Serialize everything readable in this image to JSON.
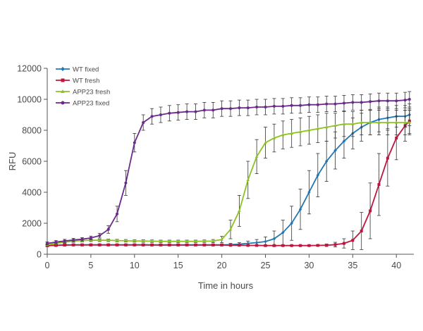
{
  "chart_data": {
    "type": "line",
    "xlabel": "Time in hours",
    "ylabel": "RFU",
    "xlim": [
      0,
      42
    ],
    "ylim": [
      0,
      12000
    ],
    "xticks": [
      0,
      5,
      10,
      15,
      20,
      25,
      30,
      35,
      40
    ],
    "yticks": [
      0,
      2000,
      4000,
      6000,
      8000,
      10000,
      12000
    ],
    "grid": false,
    "error_bars": true,
    "legend_position": "top-left",
    "series": [
      {
        "name": "WT fixed",
        "color": "#1f77b4",
        "marker": "diamond",
        "x": [
          0,
          1,
          2,
          3,
          4,
          5,
          6,
          7,
          8,
          9,
          10,
          11,
          12,
          13,
          14,
          15,
          16,
          17,
          18,
          19,
          20,
          21,
          22,
          23,
          24,
          25,
          26,
          27,
          28,
          29,
          30,
          31,
          32,
          33,
          34,
          35,
          36,
          37,
          38,
          39,
          40,
          41,
          41.5
        ],
        "values": [
          560,
          580,
          600,
          610,
          610,
          610,
          610,
          610,
          610,
          610,
          610,
          610,
          600,
          600,
          600,
          600,
          600,
          600,
          600,
          600,
          600,
          620,
          650,
          700,
          750,
          820,
          1000,
          1400,
          2000,
          2900,
          4000,
          5100,
          6000,
          6700,
          7300,
          7800,
          8200,
          8500,
          8700,
          8800,
          8900,
          8900,
          9000
        ],
        "errors": [
          60,
          60,
          60,
          60,
          60,
          60,
          60,
          60,
          60,
          60,
          60,
          60,
          60,
          60,
          60,
          60,
          60,
          60,
          60,
          60,
          60,
          80,
          100,
          150,
          200,
          300,
          500,
          800,
          1100,
          1300,
          1400,
          1400,
          1300,
          1200,
          1100,
          1000,
          900,
          800,
          800,
          700,
          700,
          700,
          700
        ]
      },
      {
        "name": "WT fresh",
        "color": "#c0143c",
        "marker": "square",
        "x": [
          0,
          1,
          2,
          3,
          4,
          5,
          6,
          7,
          8,
          9,
          10,
          11,
          12,
          13,
          14,
          15,
          16,
          17,
          18,
          19,
          20,
          21,
          22,
          23,
          24,
          25,
          26,
          27,
          28,
          29,
          30,
          31,
          32,
          33,
          34,
          35,
          36,
          37,
          38,
          39,
          40,
          41,
          41.5
        ],
        "values": [
          550,
          570,
          590,
          600,
          600,
          600,
          600,
          600,
          600,
          600,
          600,
          600,
          600,
          600,
          600,
          600,
          600,
          600,
          600,
          600,
          600,
          580,
          580,
          570,
          570,
          560,
          560,
          560,
          560,
          560,
          560,
          570,
          580,
          620,
          700,
          900,
          1500,
          2800,
          4500,
          6200,
          7500,
          8300,
          8600
        ],
        "errors": [
          50,
          50,
          50,
          50,
          50,
          50,
          50,
          50,
          50,
          50,
          50,
          50,
          50,
          50,
          50,
          50,
          50,
          50,
          50,
          50,
          50,
          40,
          40,
          40,
          40,
          40,
          40,
          40,
          40,
          40,
          40,
          50,
          80,
          150,
          300,
          600,
          1200,
          1800,
          2000,
          1800,
          1400,
          1000,
          800
        ]
      },
      {
        "name": "APP23 fresh",
        "color": "#8dc21f",
        "marker": "triangle",
        "x": [
          0,
          1,
          2,
          3,
          4,
          5,
          6,
          7,
          8,
          9,
          10,
          11,
          12,
          13,
          14,
          15,
          16,
          17,
          18,
          19,
          20,
          21,
          22,
          23,
          24,
          25,
          26,
          27,
          28,
          29,
          30,
          31,
          32,
          33,
          34,
          35,
          36,
          37,
          38,
          39,
          40,
          41,
          41.5
        ],
        "values": [
          600,
          700,
          780,
          850,
          880,
          900,
          900,
          900,
          880,
          870,
          860,
          850,
          840,
          830,
          830,
          830,
          830,
          830,
          840,
          850,
          950,
          1600,
          2800,
          4800,
          6300,
          7200,
          7500,
          7700,
          7800,
          7900,
          8000,
          8100,
          8200,
          8300,
          8400,
          8400,
          8500,
          8500,
          8500,
          8500,
          8500,
          8500,
          8500
        ],
        "errors": [
          80,
          80,
          80,
          80,
          80,
          80,
          80,
          80,
          80,
          80,
          80,
          80,
          80,
          80,
          80,
          80,
          80,
          80,
          80,
          100,
          200,
          600,
          1000,
          1200,
          1100,
          1000,
          900,
          900,
          900,
          900,
          900,
          900,
          900,
          800,
          800,
          800,
          800,
          800,
          800,
          800,
          800,
          800,
          800
        ]
      },
      {
        "name": "APP23 fixed",
        "color": "#6a2a8c",
        "marker": "circle",
        "x": [
          0,
          1,
          2,
          3,
          4,
          5,
          6,
          7,
          8,
          9,
          10,
          11,
          12,
          13,
          14,
          15,
          16,
          17,
          18,
          19,
          20,
          21,
          22,
          23,
          24,
          25,
          26,
          27,
          28,
          29,
          30,
          31,
          32,
          33,
          34,
          35,
          36,
          37,
          38,
          39,
          40,
          41,
          41.5
        ],
        "values": [
          700,
          780,
          860,
          920,
          970,
          1050,
          1200,
          1600,
          2600,
          4600,
          7200,
          8500,
          8900,
          9000,
          9100,
          9150,
          9200,
          9200,
          9300,
          9300,
          9400,
          9400,
          9450,
          9450,
          9500,
          9500,
          9550,
          9550,
          9600,
          9600,
          9650,
          9650,
          9700,
          9700,
          9750,
          9800,
          9800,
          9850,
          9900,
          9900,
          9900,
          9950,
          10000
        ],
        "errors": [
          100,
          100,
          100,
          100,
          100,
          120,
          150,
          250,
          500,
          800,
          600,
          500,
          500,
          500,
          500,
          500,
          500,
          500,
          500,
          500,
          500,
          500,
          500,
          500,
          500,
          500,
          500,
          500,
          500,
          500,
          500,
          500,
          500,
          500,
          500,
          500,
          500,
          500,
          500,
          500,
          500,
          500,
          500
        ]
      }
    ]
  }
}
